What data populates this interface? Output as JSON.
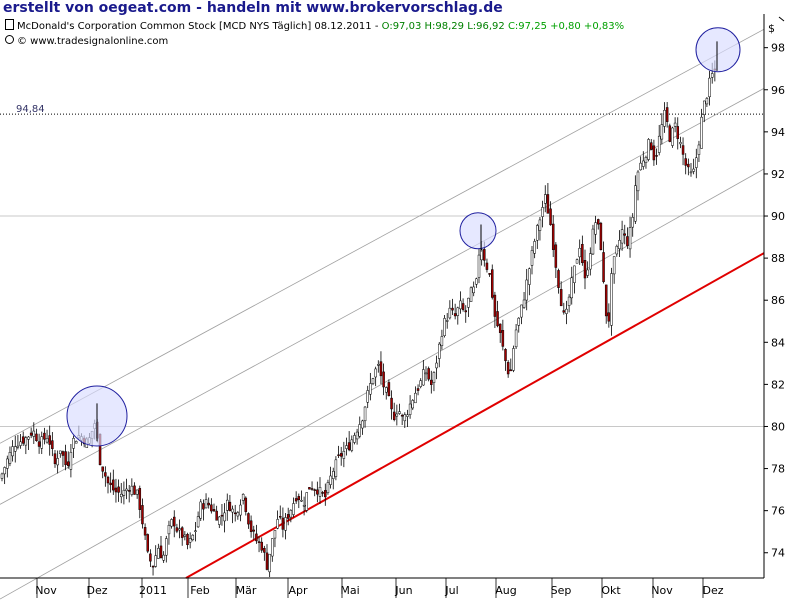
{
  "header": {
    "banner": "erstellt von oegeat.com - handeln mit www.brokervorschlag.de"
  },
  "instrument": {
    "name": "McDonald's Corporation Common Stock [MCD NYS  Täglich] 08.12.2011 - ",
    "ohl": "O:97,03 H:98,29 L:96,92",
    "close": "C:97,25 +0,80 +0,83%",
    "source": "© www.tradesignalonline.com",
    "colors": {
      "ohl": "#008000",
      "close": "#00a000",
      "text": "#000000"
    }
  },
  "chart_data": {
    "type": "candlestick",
    "currency_label": "$",
    "x_tick_labels": [
      "Nov",
      "Dez",
      "2011",
      "Feb",
      "Mär",
      "Apr",
      "Mai",
      "Jun",
      "Jul",
      "Aug",
      "Sep",
      "Okt",
      "Nov",
      "Dez"
    ],
    "y_ticks": [
      74,
      76,
      78,
      80,
      82,
      84,
      86,
      88,
      90,
      92,
      94,
      96,
      98
    ],
    "ylim": [
      72.8,
      99.6
    ],
    "grid_lines_y": [
      80,
      90
    ],
    "reference_line": {
      "value": 94.84,
      "label": "94,84"
    },
    "anchors": [
      [
        0,
        77.5
      ],
      [
        8,
        78.5
      ],
      [
        15,
        79.2
      ],
      [
        25,
        79.4
      ],
      [
        33,
        79.8
      ],
      [
        40,
        79.2
      ],
      [
        48,
        79.6
      ],
      [
        55,
        78.2
      ],
      [
        60,
        79.0
      ],
      [
        67,
        78.0
      ],
      [
        72,
        79.3
      ],
      [
        80,
        79.6
      ],
      [
        88,
        79.2
      ],
      [
        95,
        80.2
      ],
      [
        100,
        78.4
      ],
      [
        108,
        77.3
      ],
      [
        115,
        76.9
      ],
      [
        122,
        76.8
      ],
      [
        130,
        77.2
      ],
      [
        138,
        76.7
      ],
      [
        142,
        75.6
      ],
      [
        148,
        73.8
      ],
      [
        153,
        73.4
      ],
      [
        158,
        74.3
      ],
      [
        163,
        73.7
      ],
      [
        168,
        75.0
      ],
      [
        173,
        75.6
      ],
      [
        178,
        75.0
      ],
      [
        183,
        74.8
      ],
      [
        188,
        74.3
      ],
      [
        195,
        75.0
      ],
      [
        200,
        76.2
      ],
      [
        207,
        76.4
      ],
      [
        213,
        76.0
      ],
      [
        220,
        75.6
      ],
      [
        228,
        76.4
      ],
      [
        235,
        75.8
      ],
      [
        243,
        76.8
      ],
      [
        250,
        75.2
      ],
      [
        256,
        74.6
      ],
      [
        262,
        74.3
      ],
      [
        267,
        73.4
      ],
      [
        272,
        74.5
      ],
      [
        278,
        75.7
      ],
      [
        283,
        75.2
      ],
      [
        290,
        76.0
      ],
      [
        297,
        76.8
      ],
      [
        303,
        76.3
      ],
      [
        310,
        77.2
      ],
      [
        318,
        77.0
      ],
      [
        325,
        76.6
      ],
      [
        332,
        77.8
      ],
      [
        340,
        78.6
      ],
      [
        348,
        79.0
      ],
      [
        355,
        79.7
      ],
      [
        362,
        80.4
      ],
      [
        368,
        81.6
      ],
      [
        373,
        82.4
      ],
      [
        378,
        82.9
      ],
      [
        383,
        82.0
      ],
      [
        388,
        81.4
      ],
      [
        393,
        80.4
      ],
      [
        398,
        80.9
      ],
      [
        403,
        80.3
      ],
      [
        408,
        80.8
      ],
      [
        415,
        81.6
      ],
      [
        420,
        82.0
      ],
      [
        425,
        82.7
      ],
      [
        432,
        81.9
      ],
      [
        438,
        83.5
      ],
      [
        443,
        84.8
      ],
      [
        450,
        85.5
      ],
      [
        455,
        85.2
      ],
      [
        460,
        85.8
      ],
      [
        465,
        85.3
      ],
      [
        470,
        86.3
      ],
      [
        476,
        86.6
      ],
      [
        480,
        88.8
      ],
      [
        485,
        87.9
      ],
      [
        490,
        87.1
      ],
      [
        495,
        85.2
      ],
      [
        500,
        84.4
      ],
      [
        505,
        83.2
      ],
      [
        510,
        82.3
      ],
      [
        515,
        84.4
      ],
      [
        520,
        85.3
      ],
      [
        525,
        86.4
      ],
      [
        530,
        87.7
      ],
      [
        535,
        88.9
      ],
      [
        540,
        89.9
      ],
      [
        545,
        90.9
      ],
      [
        550,
        89.8
      ],
      [
        555,
        88.0
      ],
      [
        560,
        86.3
      ],
      [
        565,
        84.9
      ],
      [
        570,
        86.4
      ],
      [
        575,
        87.6
      ],
      [
        580,
        88.7
      ],
      [
        585,
        86.9
      ],
      [
        590,
        88.3
      ],
      [
        595,
        89.8
      ],
      [
        600,
        89.2
      ],
      [
        604,
        86.4
      ],
      [
        608,
        84.5
      ],
      [
        612,
        87.4
      ],
      [
        617,
        88.4
      ],
      [
        622,
        89.3
      ],
      [
        627,
        88.7
      ],
      [
        632,
        89.6
      ],
      [
        636,
        91.8
      ],
      [
        640,
        92.4
      ],
      [
        645,
        92.9
      ],
      [
        650,
        93.6
      ],
      [
        655,
        92.6
      ],
      [
        660,
        93.9
      ],
      [
        665,
        94.9
      ],
      [
        670,
        93.7
      ],
      [
        675,
        94.3
      ],
      [
        680,
        93.5
      ],
      [
        685,
        92.5
      ],
      [
        690,
        91.9
      ],
      [
        694,
        92.1
      ],
      [
        699,
        93.6
      ],
      [
        703,
        95.1
      ],
      [
        707,
        95.8
      ],
      [
        711,
        96.6
      ],
      [
        716,
        97.0
      ]
    ],
    "red_trendline": [
      [
        186,
        72.8
      ],
      [
        800,
        89.2
      ]
    ],
    "channel_lines": [
      [
        [
          0,
          79.2
        ],
        [
          800,
          99.8
        ]
      ],
      [
        [
          0,
          76.3
        ],
        [
          800,
          97.0
        ]
      ],
      [
        [
          0,
          71.8
        ],
        [
          800,
          93.2
        ]
      ]
    ],
    "highlight_circles": [
      [
        97,
        80.5
      ],
      [
        478,
        89.3
      ],
      [
        718,
        97.9
      ]
    ]
  },
  "colors": {
    "grid": "#c8c8c8",
    "axis": "#000000",
    "red_trend": "#e00000",
    "channel": "#a0a0a0",
    "candle_up": "#ffffff",
    "candle_down": "#a00000",
    "wick": "#000000",
    "circle_fill": "#d8dcff",
    "circle_stroke": "#2020a0"
  }
}
